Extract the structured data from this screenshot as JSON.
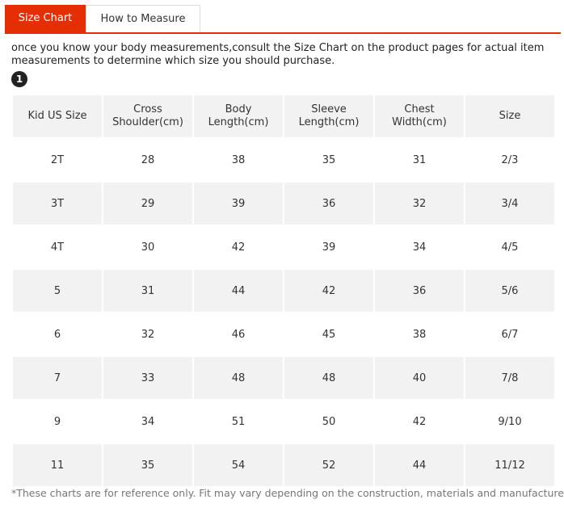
{
  "tabs": {
    "size_chart": "Size Chart",
    "how_to_measure": "How to Measure"
  },
  "intro": "once you know your body measurements,consult the Size Chart on the product pages for actual item measurements to determine which size you should purchase.",
  "step": "1",
  "table": {
    "headers": [
      "Kid US Size",
      "Cross Shoulder(cm)",
      "Body Length(cm)",
      "Sleeve Length(cm)",
      "Chest Width(cm)",
      "Size"
    ],
    "rows": [
      [
        "2T",
        "28",
        "38",
        "35",
        "31",
        "2/3"
      ],
      [
        "3T",
        "29",
        "39",
        "36",
        "32",
        "3/4"
      ],
      [
        "4T",
        "30",
        "42",
        "39",
        "34",
        "4/5"
      ],
      [
        "5",
        "31",
        "44",
        "42",
        "36",
        "5/6"
      ],
      [
        "6",
        "32",
        "46",
        "45",
        "38",
        "6/7"
      ],
      [
        "7",
        "33",
        "48",
        "48",
        "40",
        "7/8"
      ],
      [
        "9",
        "34",
        "51",
        "50",
        "42",
        "9/10"
      ],
      [
        "11",
        "35",
        "54",
        "52",
        "44",
        "11/12"
      ]
    ]
  },
  "footnote": "*These charts are for reference only. Fit may vary depending on the construction, materials and manufacturer.",
  "colors": {
    "accent": "#e62e04",
    "shaded_row": "#f2f2f2"
  }
}
